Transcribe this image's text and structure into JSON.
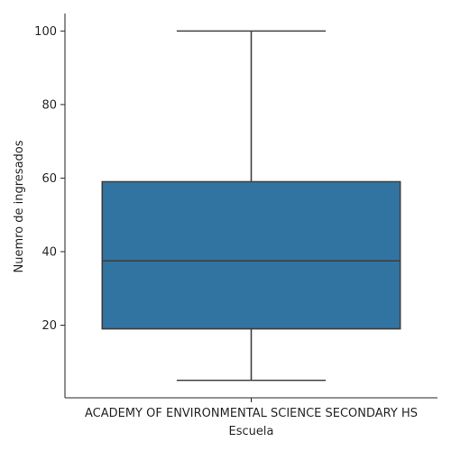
{
  "chart_data": {
    "type": "box",
    "categories": [
      "ACADEMY OF ENVIRONMENTAL SCIENCE SECONDARY HS"
    ],
    "boxes": [
      {
        "whisker_low": 5,
        "q1": 19,
        "median": 37.5,
        "q3": 59,
        "whisker_high": 100
      }
    ],
    "xlabel": "Escuela",
    "ylabel": "Nuemro de ingresados",
    "yticks": [
      20,
      40,
      60,
      80,
      100
    ],
    "ylim": [
      0.25,
      104.75
    ],
    "colors": {
      "box_fill": "#3274a1",
      "lines": "#3f3f3f",
      "axis": "#262626"
    },
    "grid": false,
    "legend": "none"
  }
}
